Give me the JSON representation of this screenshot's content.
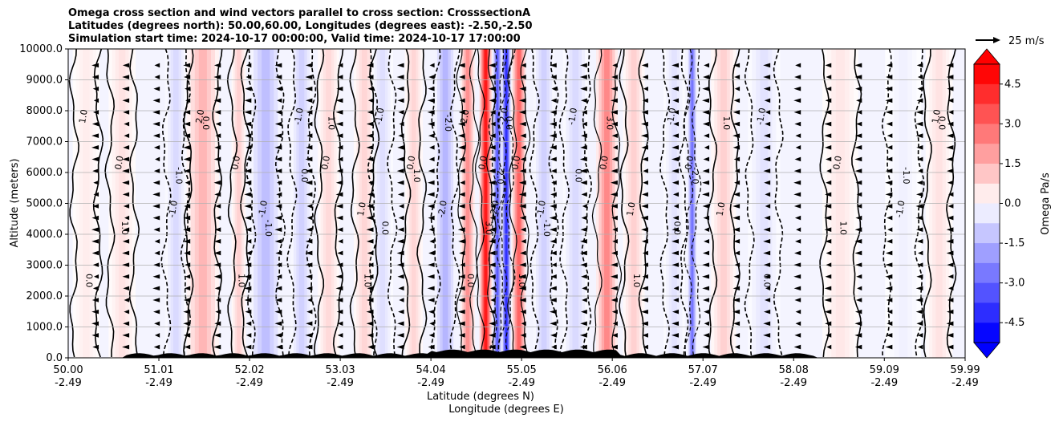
{
  "chart_data": {
    "type": "heatmap",
    "title_lines": [
      "Omega cross section and wind vectors parallel to cross section: CrosssectionA",
      "Latitudes (degrees north): 50.00,60.00, Longitudes (degrees east): -2.50,-2.50",
      "Simulation start time: 2024-10-17 00:00:00, Valid time: 2024-10-17 17:00:00"
    ],
    "ylabel": "Altitude (meters)",
    "xlabel_lat": "Latitude (degrees N)",
    "xlabel_lon": "Longitude (degrees E)",
    "ylim": [
      0,
      10000
    ],
    "xlim": [
      50.0,
      59.99
    ],
    "y_ticks": [
      "0.0",
      "1000.0",
      "2000.0",
      "3000.0",
      "4000.0",
      "5000.0",
      "6000.0",
      "7000.0",
      "8000.0",
      "9000.0",
      "10000.0"
    ],
    "x_ticks": [
      {
        "lat": "50.00",
        "lon": "-2.49",
        "v": 50.0
      },
      {
        "lat": "51.01",
        "lon": "-2.49",
        "v": 51.01
      },
      {
        "lat": "52.02",
        "lon": "-2.49",
        "v": 52.02
      },
      {
        "lat": "53.03",
        "lon": "-2.49",
        "v": 53.03
      },
      {
        "lat": "54.04",
        "lon": "-2.49",
        "v": 54.04
      },
      {
        "lat": "55.05",
        "lon": "-2.49",
        "v": 55.05
      },
      {
        "lat": "56.06",
        "lon": "-2.49",
        "v": 56.06
      },
      {
        "lat": "57.07",
        "lon": "-2.49",
        "v": 57.07
      },
      {
        "lat": "58.08",
        "lon": "-2.49",
        "v": 58.08
      },
      {
        "lat": "59.09",
        "lon": "-2.49",
        "v": 59.09
      },
      {
        "lat": "59.99",
        "lon": "-2.49",
        "v": 59.99
      }
    ],
    "colorbar": {
      "label": "Omega Pa/s",
      "range": [
        -5.25,
        5.25
      ],
      "ticks": [
        "-4.5",
        "-3.0",
        "-1.5",
        "0.0",
        "1.5",
        "3.0",
        "4.5"
      ],
      "tick_values": [
        -4.5,
        -3.0,
        -1.5,
        0.0,
        1.5,
        3.0,
        4.5
      ],
      "low_color": "#0000ff",
      "high_color": "#ff0000"
    },
    "vector_key": {
      "label": "25 m/s"
    },
    "omega_bands": [
      {
        "lat": 50.2,
        "w": 0.15,
        "v": 0.4
      },
      {
        "lat": 50.6,
        "w": 0.15,
        "v": 0.6
      },
      {
        "lat": 51.2,
        "w": 0.12,
        "v": -0.8
      },
      {
        "lat": 51.5,
        "w": 0.18,
        "v": 1.6
      },
      {
        "lat": 51.9,
        "w": 0.08,
        "v": 1.0
      },
      {
        "lat": 52.2,
        "w": 0.18,
        "v": -1.4
      },
      {
        "lat": 52.6,
        "w": 0.12,
        "v": -1.0
      },
      {
        "lat": 52.9,
        "w": 0.12,
        "v": 0.8
      },
      {
        "lat": 53.3,
        "w": 0.12,
        "v": 0.9
      },
      {
        "lat": 53.5,
        "w": 0.12,
        "v": -0.7
      },
      {
        "lat": 53.85,
        "w": 0.1,
        "v": 0.9
      },
      {
        "lat": 54.2,
        "w": 0.12,
        "v": -1.6
      },
      {
        "lat": 54.45,
        "w": 0.08,
        "v": 2.4
      },
      {
        "lat": 54.65,
        "w": 0.07,
        "v": 5.0
      },
      {
        "lat": 54.78,
        "w": 0.05,
        "v": -3.5
      },
      {
        "lat": 54.88,
        "w": 0.05,
        "v": -4.5
      },
      {
        "lat": 55.02,
        "w": 0.08,
        "v": 3.4
      },
      {
        "lat": 55.3,
        "w": 0.12,
        "v": -1.0
      },
      {
        "lat": 55.65,
        "w": 0.14,
        "v": -0.8
      },
      {
        "lat": 56.0,
        "w": 0.12,
        "v": 2.6
      },
      {
        "lat": 56.3,
        "w": 0.12,
        "v": 1.0
      },
      {
        "lat": 56.75,
        "w": 0.12,
        "v": -0.6
      },
      {
        "lat": 56.95,
        "w": 0.05,
        "v": -3.0
      },
      {
        "lat": 57.3,
        "w": 0.14,
        "v": 1.0
      },
      {
        "lat": 57.75,
        "w": 0.18,
        "v": -0.6
      },
      {
        "lat": 58.6,
        "w": 0.2,
        "v": 0.5
      },
      {
        "lat": 59.3,
        "w": 0.2,
        "v": -0.3
      },
      {
        "lat": 59.7,
        "w": 0.15,
        "v": 0.6
      }
    ],
    "contour_labels": [
      "0.0",
      "1.0",
      "-1.0",
      "2.0",
      "-2.0",
      "3.0"
    ]
  }
}
